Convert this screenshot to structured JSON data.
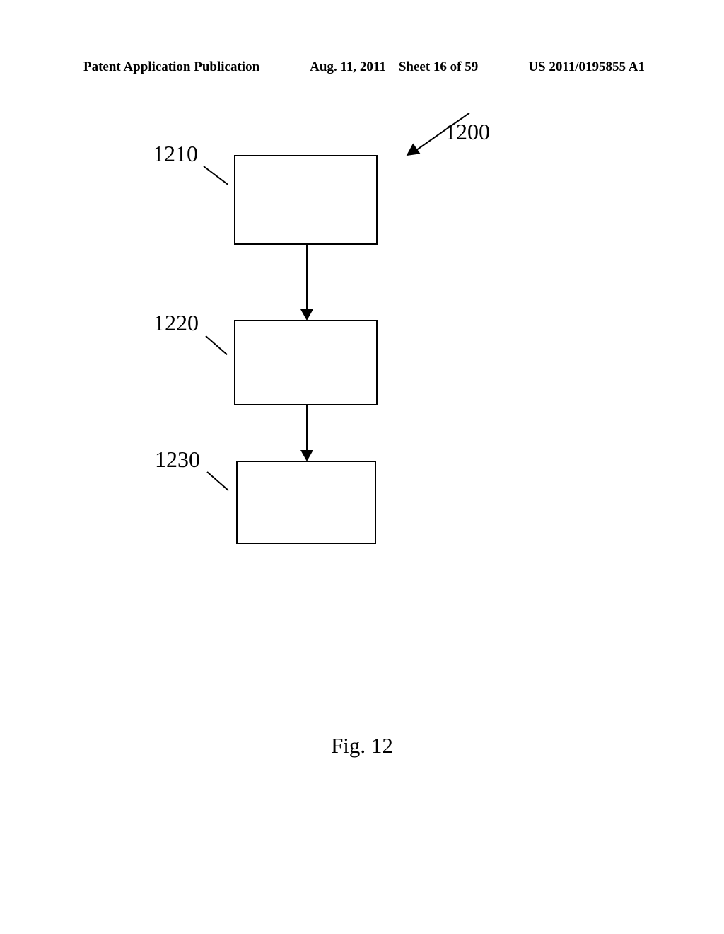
{
  "header": {
    "left": "Patent Application Publication",
    "date": "Aug. 11, 2011",
    "sheet": "Sheet 16 of 59",
    "right": "US 2011/0195855 A1"
  },
  "diagram": {
    "type": "flowchart",
    "nodes": [
      {
        "id": "1210",
        "label": "1210"
      },
      {
        "id": "1220",
        "label": "1220"
      },
      {
        "id": "1230",
        "label": "1230"
      }
    ],
    "ref_overall": "1200",
    "edges": [
      {
        "from": "1210",
        "to": "1220"
      },
      {
        "from": "1220",
        "to": "1230"
      }
    ],
    "box_border_color": "#000000",
    "box_border_width": 2,
    "background_color": "#ffffff",
    "label_fontsize": 32,
    "label_font": "Times New Roman"
  },
  "figure_label": "Fig. 12"
}
